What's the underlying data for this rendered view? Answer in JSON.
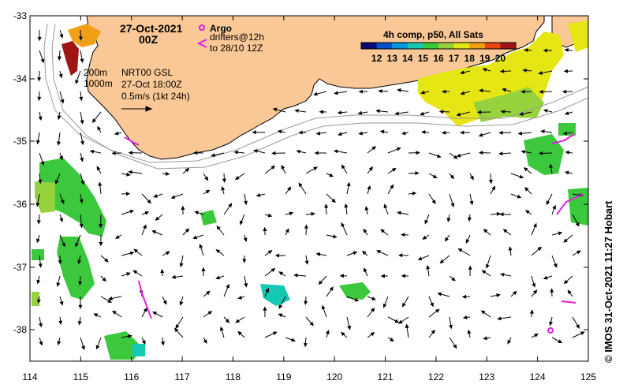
{
  "map": {
    "date": "27-Oct-2021",
    "hour": "00Z",
    "legend": {
      "argo_label": "Argo",
      "drifters_label": "drifters@12h",
      "drifters_to": "to 28/10 12Z"
    },
    "isobaths": [
      "200m",
      "1000m"
    ],
    "current_source": "NRT00 GSL",
    "current_time": "27-Oct 18:00Z",
    "scale_label": "0.5m/s (1kt 24h)",
    "colorbar": {
      "title": "4h comp, p50, All Sats",
      "ticks": [
        "12",
        "13",
        "14",
        "15",
        "16",
        "17",
        "18",
        "19",
        "20"
      ],
      "colors": [
        "#0a0a78",
        "#0050c8",
        "#0096dc",
        "#14c8b4",
        "#3cc83c",
        "#96d23c",
        "#e6e614",
        "#f0a014",
        "#e64614",
        "#a01414"
      ]
    },
    "credit": "© IMOS 31-Oct-2021 11:27 Hobart",
    "x_ticks": [
      "114",
      "115",
      "116",
      "117",
      "118",
      "119",
      "120",
      "121",
      "122",
      "123",
      "124",
      "125"
    ],
    "y_ticks": [
      "-33",
      "-34",
      "-35",
      "-36",
      "-37",
      "-38"
    ],
    "colors": {
      "land": "#f9c896",
      "argo": "#e020e0",
      "drifter": "#e020e0"
    }
  }
}
